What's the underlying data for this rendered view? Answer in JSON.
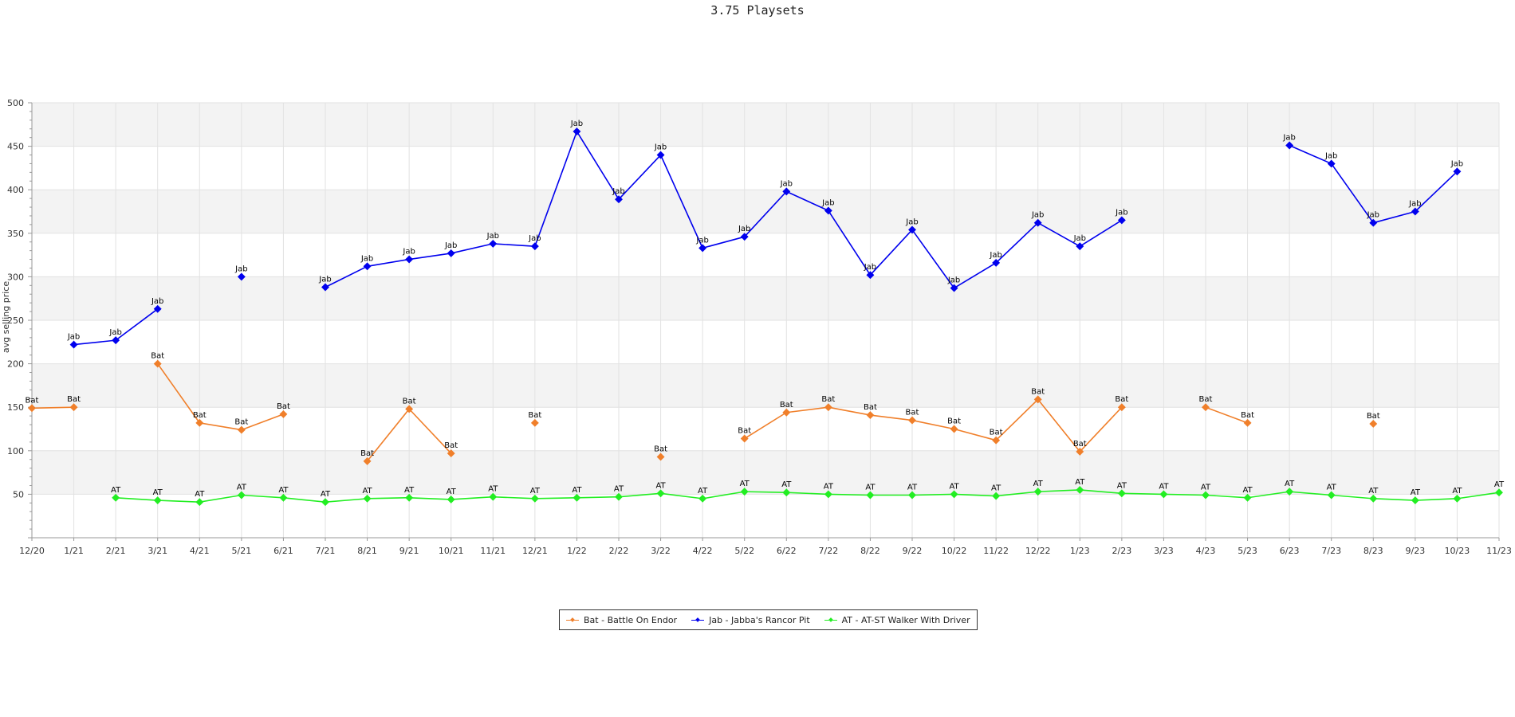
{
  "chart_data": {
    "type": "line",
    "title": "3.75 Playsets",
    "xlabel": "",
    "ylabel": "avg selling price",
    "ylim": [
      0,
      500
    ],
    "yticks": [
      50,
      100,
      150,
      200,
      250,
      300,
      350,
      400,
      450,
      500
    ],
    "grid": true,
    "legend_position": "bottom-center",
    "categories": [
      "12/20",
      "1/21",
      "2/21",
      "3/21",
      "4/21",
      "5/21",
      "6/21",
      "7/21",
      "8/21",
      "9/21",
      "10/21",
      "11/21",
      "12/21",
      "1/22",
      "2/22",
      "3/22",
      "4/22",
      "5/22",
      "6/22",
      "7/22",
      "8/22",
      "9/22",
      "10/22",
      "11/22",
      "12/22",
      "1/23",
      "2/23",
      "3/23",
      "4/23",
      "5/23",
      "6/23",
      "7/23",
      "8/23",
      "9/23",
      "10/23",
      "11/23"
    ],
    "series": [
      {
        "name": "Bat - Battle On Endor",
        "point_label": "Bat",
        "color": "#f07f2a",
        "values": [
          149,
          150,
          null,
          200,
          132,
          124,
          142,
          null,
          88,
          148,
          97,
          null,
          132,
          null,
          null,
          93,
          null,
          114,
          144,
          150,
          141,
          135,
          125,
          112,
          159,
          99,
          150,
          null,
          150,
          132,
          null,
          null,
          131,
          null,
          null,
          null
        ]
      },
      {
        "name": "Jab - Jabba's Rancor Pit",
        "point_label": "Jab",
        "color": "#0000ee",
        "values": [
          null,
          222,
          227,
          263,
          null,
          300,
          null,
          288,
          312,
          320,
          327,
          338,
          335,
          467,
          389,
          440,
          333,
          346,
          398,
          376,
          302,
          354,
          287,
          316,
          362,
          335,
          365,
          null,
          null,
          null,
          451,
          430,
          362,
          375,
          421,
          null
        ]
      },
      {
        "name": "AT - AT-ST Walker With Driver",
        "point_label": "AT",
        "color": "#22ee22",
        "values": [
          null,
          null,
          46,
          43,
          41,
          49,
          46,
          41,
          45,
          46,
          44,
          47,
          45,
          46,
          47,
          51,
          45,
          53,
          52,
          50,
          49,
          49,
          50,
          48,
          53,
          55,
          51,
          50,
          49,
          46,
          53,
          49,
          45,
          43,
          45,
          52
        ]
      }
    ]
  }
}
